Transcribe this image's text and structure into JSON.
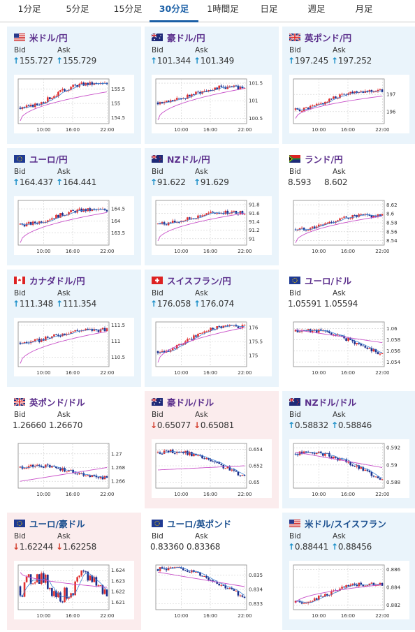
{
  "tabs": [
    {
      "label": "1分足",
      "active": false
    },
    {
      "label": "5分足",
      "active": false
    },
    {
      "label": "15分足",
      "active": false
    },
    {
      "label": "30分足",
      "active": true
    },
    {
      "label": "1時間足",
      "active": false
    },
    {
      "label": "日足",
      "active": false
    },
    {
      "label": "週足",
      "active": false
    },
    {
      "label": "月足",
      "active": false
    }
  ],
  "labels": {
    "bid": "Bid",
    "ask": "Ask"
  },
  "colors": {
    "up_arrow": "#1a8fc8",
    "down_arrow": "#d23b2a",
    "candle_up": "#e03030",
    "candle_down": "#1a2e8c",
    "ma": "#c84fc8",
    "card_up_bg": "#eaf4fb",
    "card_down_bg": "#fbeced"
  },
  "pairs": [
    {
      "name": "米ドル/円",
      "flag": "us-flag",
      "flag2": "jp-flag",
      "direction": "up",
      "bid": "155.727",
      "ask": "155.729",
      "chart_data": {
        "type": "candlestick",
        "x_ticks": [
          "10:00",
          "16:00",
          "22:00"
        ],
        "y_ticks": [
          "155.5",
          "155",
          "154.5"
        ],
        "ylim": [
          154.3,
          155.85
        ],
        "start": 154.85,
        "end": 155.68,
        "ma_start": 154.4,
        "ma_end": 155.4,
        "pattern": "rise"
      }
    },
    {
      "name": "豪ドル/円",
      "flag": "au-flag",
      "flag2": "jp-flag",
      "direction": "up",
      "bid": "101.344",
      "ask": "101.349",
      "chart_data": {
        "type": "candlestick",
        "x_ticks": [
          "10:00",
          "16:00",
          "22:00"
        ],
        "y_ticks": [
          "101.5",
          "101",
          "100.5"
        ],
        "ylim": [
          100.35,
          101.62
        ],
        "start": 100.95,
        "end": 101.38,
        "ma_start": 100.45,
        "ma_end": 101.35,
        "pattern": "rise"
      }
    },
    {
      "name": "英ポンド/円",
      "flag": "gb-flag",
      "flag2": "jp-flag",
      "direction": "up",
      "bid": "197.245",
      "ask": "197.252",
      "chart_data": {
        "type": "candlestick",
        "x_ticks": [
          "10:00",
          "16:00",
          "22:00"
        ],
        "y_ticks": [
          "197",
          "196"
        ],
        "ylim": [
          195.3,
          197.9
        ],
        "start": 196.1,
        "end": 197.2,
        "ma_start": 195.6,
        "ma_end": 196.9,
        "pattern": "rise"
      }
    },
    {
      "name": "ユーロ/円",
      "flag": "eu-flag",
      "flag2": "jp-flag",
      "direction": "up",
      "bid": "164.437",
      "ask": "164.441",
      "chart_data": {
        "type": "candlestick",
        "x_ticks": [
          "10:00",
          "16:00",
          "22:00"
        ],
        "y_ticks": [
          "164.5",
          "164",
          "163.5"
        ],
        "ylim": [
          163.0,
          164.85
        ],
        "start": 163.85,
        "end": 164.45,
        "ma_start": 163.1,
        "ma_end": 164.35,
        "pattern": "rise"
      }
    },
    {
      "name": "NZドル/円",
      "flag": "nz-flag",
      "flag2": "jp-flag",
      "direction": "up",
      "bid": "91.622",
      "ask": "91.629",
      "chart_data": {
        "type": "candlestick",
        "x_ticks": [
          "10:00",
          "16:00",
          "22:00"
        ],
        "y_ticks": [
          "91.8",
          "91.6",
          "91.4",
          "91.2",
          "91"
        ],
        "ylim": [
          90.85,
          91.9
        ],
        "start": 91.35,
        "end": 91.62,
        "ma_start": 90.95,
        "ma_end": 91.6,
        "pattern": "rise"
      }
    },
    {
      "name": "ランド/円",
      "flag": "za-flag",
      "flag2": "jp-flag",
      "direction": "flat",
      "bid": "8.593",
      "ask": "8.602",
      "chart_data": {
        "type": "candlestick",
        "x_ticks": [
          "10:00",
          "16:00",
          "22:00"
        ],
        "y_ticks": [
          "8.62",
          "8.6",
          "8.58",
          "8.56",
          "8.54"
        ],
        "ylim": [
          8.53,
          8.63
        ],
        "start": 8.565,
        "end": 8.595,
        "ma_start": 8.535,
        "ma_end": 8.595,
        "pattern": "rise"
      }
    },
    {
      "name": "カナダドル/円",
      "flag": "ca-flag",
      "flag2": "jp-flag",
      "direction": "up",
      "bid": "111.348",
      "ask": "111.354",
      "chart_data": {
        "type": "candlestick",
        "x_ticks": [
          "10:00",
          "16:00",
          "22:00"
        ],
        "y_ticks": [
          "111.5",
          "111",
          "110.5"
        ],
        "ylim": [
          110.2,
          111.6
        ],
        "start": 110.95,
        "end": 111.35,
        "ma_start": 110.3,
        "ma_end": 111.3,
        "pattern": "rise"
      }
    },
    {
      "name": "スイスフラン/円",
      "flag": "ch-flag",
      "flag2": "jp-flag",
      "direction": "up",
      "bid": "176.058",
      "ask": "176.074",
      "chart_data": {
        "type": "candlestick",
        "x_ticks": [
          "10:00",
          "16:00",
          "22:00"
        ],
        "y_ticks": [
          "176",
          "175.5",
          "175"
        ],
        "ylim": [
          174.6,
          176.2
        ],
        "start": 175.15,
        "end": 176.05,
        "ma_start": 174.75,
        "ma_end": 176.0,
        "pattern": "rise"
      }
    },
    {
      "name": "ユーロ/ドル",
      "flag": "eu-flag",
      "flag2": "us-flag",
      "direction": "flat",
      "bid": "1.05591",
      "ask": "1.05594",
      "chart_data": {
        "type": "candlestick",
        "x_ticks": [
          "10:00",
          "16:00",
          "22:00"
        ],
        "y_ticks": [
          "1.06",
          "1.058",
          "1.056",
          "1.054"
        ],
        "ylim": [
          1.0532,
          1.0612
        ],
        "start": 1.0595,
        "end": 1.0555,
        "ma_start": 1.0598,
        "ma_end": 1.0575,
        "pattern": "fall"
      }
    },
    {
      "name": "英ポンド/ドル",
      "flag": "gb-flag",
      "flag2": "us-flag",
      "direction": "flat",
      "bid": "1.26660",
      "ask": "1.26670",
      "chart_data": {
        "type": "candlestick",
        "x_ticks": [
          "10:00",
          "16:00",
          "22:00"
        ],
        "y_ticks": [
          "1.27",
          "1.268",
          "1.266"
        ],
        "ylim": [
          1.265,
          1.2715
        ],
        "start": 1.268,
        "end": 1.2665,
        "ma_start": 1.266,
        "ma_end": 1.268,
        "pattern": "fall"
      }
    },
    {
      "name": "豪ドル/ドル",
      "flag": "au-flag",
      "flag2": "us-flag",
      "direction": "down",
      "bid": "0.65077",
      "ask": "0.65081",
      "chart_data": {
        "type": "candlestick",
        "x_ticks": [
          "10:00",
          "16:00",
          "22:00"
        ],
        "y_ticks": [
          "0.654",
          "0.652",
          "0.65"
        ],
        "ylim": [
          0.6493,
          0.6547
        ],
        "start": 0.6536,
        "end": 0.6508,
        "ma_start": 0.6515,
        "ma_end": 0.652,
        "pattern": "fall"
      }
    },
    {
      "name": "NZドル/ドル",
      "flag": "nz-flag",
      "flag2": "us-flag",
      "direction": "up",
      "bid": "0.58832",
      "ask": "0.58846",
      "chart_data": {
        "type": "candlestick",
        "x_ticks": [
          "10:00",
          "16:00",
          "22:00"
        ],
        "y_ticks": [
          "0.592",
          "0.59",
          "0.588"
        ],
        "ylim": [
          0.5873,
          0.5925
        ],
        "start": 0.5913,
        "end": 0.5884,
        "ma_start": 0.5915,
        "ma_end": 0.5897,
        "pattern": "fall"
      }
    },
    {
      "name": "ユーロ/豪ドル",
      "flag": "eu-flag",
      "flag2": "au-flag",
      "direction": "down",
      "bid": "1.62244",
      "ask": "1.62258",
      "chart_data": {
        "type": "candlestick",
        "x_ticks": [
          "10:00",
          "16:00",
          "22:00"
        ],
        "y_ticks": [
          "1.624",
          "1.623",
          "1.622",
          "1.621"
        ],
        "ylim": [
          1.6203,
          1.6245
        ],
        "start": 1.6225,
        "end": 1.6224,
        "ma_start": 1.6238,
        "ma_end": 1.6224,
        "pattern": "noisy"
      }
    },
    {
      "name": "ユーロ/英ポンド",
      "flag": "eu-flag",
      "flag2": "gb-flag",
      "direction": "flat",
      "bid": "0.83360",
      "ask": "0.83368",
      "chart_data": {
        "type": "candlestick",
        "x_ticks": [
          "10:00",
          "16:00",
          "22:00"
        ],
        "y_ticks": [
          "0.835",
          "0.834",
          "0.833"
        ],
        "ylim": [
          0.8326,
          0.8357
        ],
        "start": 0.8354,
        "end": 0.8335,
        "ma_start": 0.8352,
        "ma_end": 0.8342,
        "pattern": "fall"
      }
    },
    {
      "name": "米ドル/スイスフラン",
      "flag": "us-flag",
      "flag2": "ch-flag",
      "direction": "up",
      "bid": "0.88441",
      "ask": "0.88456",
      "chart_data": {
        "type": "candlestick",
        "x_ticks": [
          "10:00",
          "16:00",
          "22:00"
        ],
        "y_ticks": [
          "0.886",
          "0.884",
          "0.882"
        ],
        "ylim": [
          0.8815,
          0.8865
        ],
        "start": 0.8823,
        "end": 0.8843,
        "ma_start": 0.8822,
        "ma_end": 0.8843,
        "pattern": "rise"
      }
    }
  ]
}
